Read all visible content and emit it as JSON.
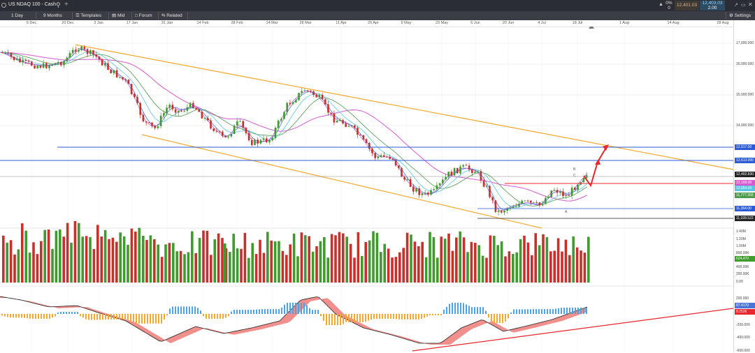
{
  "header": {
    "instrument": "US NDAQ 100 - Cash",
    "change_pct": "0%",
    "change_val": "0",
    "sell": "12,401.03",
    "buy": "12,403.03",
    "spread": "2.00"
  },
  "toolbar": {
    "interval": "1 Day",
    "range": "9 Months",
    "templates": "Templates",
    "price_type": "Mid",
    "forum": "Forum",
    "related": "Related",
    "settings": "Settings"
  },
  "dates": [
    "6 Dec",
    "20 Dec",
    "3 Jan",
    "17 Jan",
    "31 Jan",
    "14 Feb",
    "28 Feb",
    "14 Mar",
    "28 Mar",
    "11 Apr",
    "25 Apr",
    "9 May",
    "23 May",
    "6 Jun",
    "20 Jun",
    "4 Jul",
    "18 Jul",
    "1 Aug",
    "14 Aug",
    "28 Aug"
  ],
  "price_axis": [
    "17,000.000",
    "16,000.000",
    "15,000.000",
    "14,000.000"
  ],
  "price_tags": {
    "t1": "12,917.00",
    "t2": "12,613.000",
    "t3": "12,402.830",
    "t4": "12,168.00",
    "t5": "12,054.00",
    "t6": "11,777.355",
    "t7": "11,364.00",
    "t8": "11,028.522"
  },
  "volume_axis": [
    "1.40M",
    "1.20M",
    "1.00M",
    "800.00K",
    "624,470",
    "400.00K",
    "200.00K",
    "0.00"
  ],
  "osc_axis": [
    "200.000",
    "87.4170",
    "8.2526",
    "-200.000",
    "-400.000",
    "-600.000"
  ],
  "annotations": {
    "a": "A",
    "b": "B",
    "c": "C"
  },
  "colors": {
    "bull": "#3f9b2e",
    "bear": "#c8302c",
    "channel": "#f4a72a",
    "support_blue": "#2b5bd7",
    "resistance_red": "#e8262b",
    "ma_magenta": "#d65ad0",
    "ma_blue": "#4a74d8",
    "ma_cyan": "#58c7e6",
    "ma_green": "#4d9a4a"
  }
}
